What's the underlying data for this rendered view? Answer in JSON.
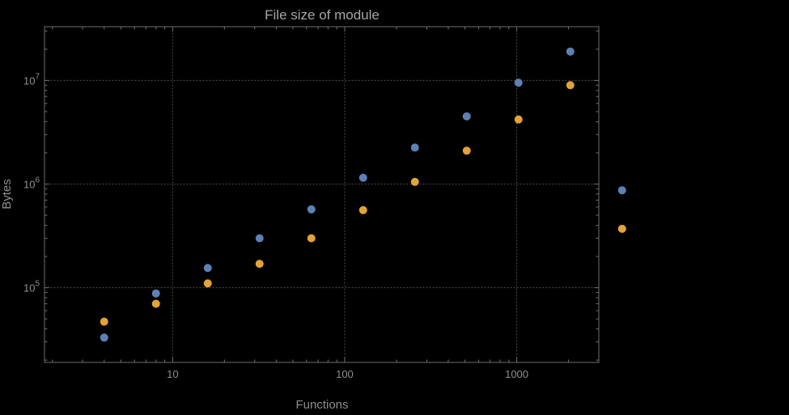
{
  "chart_data": {
    "type": "scatter",
    "title": "File size of module",
    "xlabel": "Functions",
    "ylabel": "Bytes",
    "x_scale": "log",
    "y_scale": "log",
    "xlim": [
      1.8,
      3000
    ],
    "ylim": [
      19000,
      33000000
    ],
    "grid": "dotted-at-major-ticks",
    "legend": "none",
    "background": "#000000",
    "text_color": "#8f8f8f",
    "frame_color": "#6e6e6e",
    "grid_color": "#565656",
    "x": [
      4,
      8,
      16,
      32,
      64,
      128,
      256,
      512,
      1024,
      2048,
      4096
    ],
    "series": [
      {
        "name": "series-1-blue",
        "color": "#5e81b5",
        "values": [
          33000,
          88000,
          155000,
          300000,
          570000,
          1150000,
          2250000,
          4500000,
          9500000,
          19000000,
          870000
        ]
      },
      {
        "name": "series-2-orange",
        "color": "#e3a335",
        "values": [
          47000,
          70000,
          110000,
          170000,
          300000,
          560000,
          1050000,
          2100000,
          4200000,
          9000000,
          370000
        ]
      }
    ],
    "x_ticks": [
      {
        "value": 10,
        "label": "10"
      },
      {
        "value": 100,
        "label": "100"
      },
      {
        "value": 1000,
        "label": "1000"
      }
    ],
    "y_ticks": [
      {
        "value": 100000,
        "base": "10",
        "exp": "5"
      },
      {
        "value": 1000000,
        "base": "10",
        "exp": "6"
      },
      {
        "value": 10000000,
        "base": "10",
        "exp": "7"
      }
    ]
  }
}
